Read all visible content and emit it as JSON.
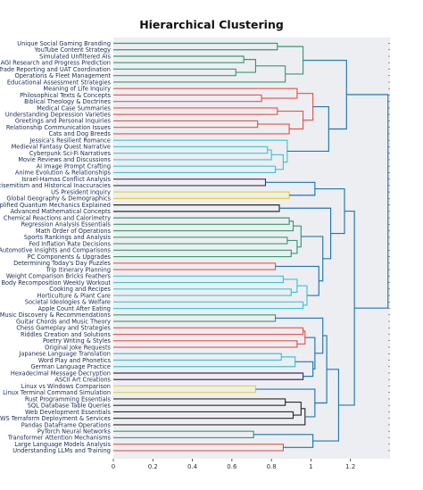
{
  "chart_data": {
    "type": "dendrogram",
    "title": "Hierarchical Clustering",
    "xlim": [
      0,
      1.4
    ],
    "xticks": [
      0,
      0.2,
      0.4,
      0.6,
      0.8,
      1,
      1.2
    ],
    "xtick_labels": [
      "0",
      "0.2",
      "0.4",
      "0.6",
      "0.8",
      "1",
      "1.2"
    ],
    "leaves": [
      "Unique Social Gaming Branding",
      "YouTube Content Strategy",
      "Simulated Unfiltered AIs",
      "AGI Research and Progress Prediction",
      "Trade Reporting and UAT Coordination",
      "Operations & Fleet Management",
      "Educational Assessment Strategies",
      "Meaning of Life Inquiry",
      "Philosophical Texts & Concepts",
      "Biblical Theology & Doctrines",
      "Medical Case Summaries",
      "Understanding Depression Varieties",
      "Greetings and Personal Inquiries",
      "Relationship Communication Issues",
      "Cats and Dog Breeds",
      "Jessica's Resilient Romance",
      "Medieval Fantasy Quest Narrative",
      "Cyberpunk Sci-Fi Narratives",
      "Movie Reviews and Discussions",
      "AI Image Prompt Crafting",
      "Anime Evolution & Relationships",
      "Israel-Hamas Conflict Analysis",
      "Antisemitism and Historical Inaccuracies",
      "US President Inquiry",
      "Global Geography & Demographics",
      "Simplified Quantum Mechanics Explained",
      "Advanced Mathematical Concepts",
      "Chemical Reactions and Calorimetry",
      "Regression Analysis Essentials",
      "Math Order of Operations",
      "Sports Rankings and Analysis",
      "Fed Inflation Rate Decisions",
      "Automotive Insights and Comparisons",
      "PC Components & Upgrades",
      "Determining Today's Day Puzzles",
      "Trip Itinerary Planning",
      "Weight Comparison Bricks Feathers",
      "Body Recomposition Weekly Workout",
      "Cooking and Recipes",
      "Horticulture & Plant Care",
      "Societal Ideologies & Welfare",
      "Apple Count After Eating",
      "Music Discovery & Recommendations",
      "Guitar Chords and Music Theory",
      "Chess Gameplay and Strategies",
      "Riddles Creation and Solutions",
      "Poetry Writing & Styles",
      "Original Joke Requests",
      "Japanese Language Translation",
      "Word Play and Phonetics",
      "German Language Practice",
      "Hexadecimal Message Decryption",
      "ASCII Art Creations",
      "Linux vs Windows Comparison",
      "Linux Terminal Command Simulation",
      "Rust Programming Essentials",
      "SQL Database Table Queries",
      "Web Development Essentials",
      "AWS Terraform Deployment & Services",
      "Pandas DataFrame Operations",
      "PyTorch Neural Networks",
      "Transformer Attention Mechanisms",
      "Large Language Models Analysis",
      "Understanding LLMs and Training"
    ],
    "merges": [
      {
        "a": 0,
        "b": 1,
        "height": 0.83,
        "color": "#3a9a6e"
      },
      {
        "a": 2,
        "b": 3,
        "height": 0.66,
        "color": "#3a9a6e"
      },
      {
        "a": 4,
        "b": 5,
        "height": 0.62,
        "color": "#3a9a6e"
      },
      {
        "a": "n2",
        "b": "n3",
        "height": 0.72,
        "color": "#3a9a6e"
      },
      {
        "a": "n4",
        "b": 6,
        "height": 0.87,
        "color": "#3a9a6e"
      },
      {
        "a": "n1",
        "b": "n5",
        "height": 0.96,
        "color": "#3a9a6e"
      },
      {
        "a": 8,
        "b": 9,
        "height": 0.75,
        "color": "#e8534b"
      },
      {
        "a": 7,
        "b": "n7",
        "height": 0.93,
        "color": "#e8534b"
      },
      {
        "a": 10,
        "b": 11,
        "height": 0.83,
        "color": "#e8534b"
      },
      {
        "a": 12,
        "b": 13,
        "height": 0.73,
        "color": "#e8534b"
      },
      {
        "a": "n10",
        "b": 14,
        "height": 0.89,
        "color": "#e8534b"
      },
      {
        "a": "n9",
        "b": "n11",
        "height": 0.96,
        "color": "#e8534b"
      },
      {
        "a": "n8",
        "b": "n12",
        "height": 1.01,
        "color": "#e8534b"
      },
      {
        "a": 16,
        "b": 17,
        "height": 0.78,
        "color": "#40c4d0"
      },
      {
        "a": "n14",
        "b": 18,
        "height": 0.8,
        "color": "#40c4d0"
      },
      {
        "a": 19,
        "b": 20,
        "height": 0.82,
        "color": "#40c4d0"
      },
      {
        "a": "n15",
        "b": "n16",
        "height": 0.86,
        "color": "#40c4d0"
      },
      {
        "a": 15,
        "b": "n17",
        "height": 0.88,
        "color": "#40c4d0"
      },
      {
        "a": "n13",
        "b": "n18",
        "height": 1.09,
        "color": "#1f77b4"
      },
      {
        "a": "n6",
        "b": "n19",
        "height": 1.18,
        "color": "#1f77b4"
      },
      {
        "a": 21,
        "b": 22,
        "height": 0.77,
        "color": "#4a2a5a"
      },
      {
        "a": 23,
        "b": 24,
        "height": 0.89,
        "color": "#e8d040"
      },
      {
        "a": "n21",
        "b": "n22",
        "height": 1.02,
        "color": "#1f77b4"
      },
      {
        "a": 25,
        "b": 26,
        "height": 0.84,
        "color": "#2a2a2a"
      },
      {
        "a": 27,
        "b": 28,
        "height": 0.89,
        "color": "#3a9a6e"
      },
      {
        "a": "n25",
        "b": 29,
        "height": 0.91,
        "color": "#3a9a6e"
      },
      {
        "a": 30,
        "b": 31,
        "height": 0.88,
        "color": "#3a9a6e"
      },
      {
        "a": 32,
        "b": 33,
        "height": 0.9,
        "color": "#3a9a6e"
      },
      {
        "a": "n27",
        "b": "n28",
        "height": 0.93,
        "color": "#3a9a6e"
      },
      {
        "a": "n26",
        "b": "n29",
        "height": 0.95,
        "color": "#3a9a6e"
      },
      {
        "a": 34,
        "b": 35,
        "height": 0.82,
        "color": "#e8534b"
      },
      {
        "a": 36,
        "b": 37,
        "height": 0.86,
        "color": "#40c4d0"
      },
      {
        "a": 38,
        "b": 39,
        "height": 0.9,
        "color": "#40c4d0"
      },
      {
        "a": "n32",
        "b": "n33",
        "height": 0.93,
        "color": "#40c4d0"
      },
      {
        "a": 40,
        "b": 41,
        "height": 0.96,
        "color": "#40c4d0"
      },
      {
        "a": "n34",
        "b": "n35",
        "height": 0.98,
        "color": "#40c4d0"
      },
      {
        "a": "n31",
        "b": "n36",
        "height": 1.04,
        "color": "#1f77b4"
      },
      {
        "a": "n30",
        "b": "n37",
        "height": 1.06,
        "color": "#1f77b4"
      },
      {
        "a": "n24",
        "b": "n38",
        "height": 1.1,
        "color": "#1f77b4"
      },
      {
        "a": "n23",
        "b": "n39",
        "height": 1.17,
        "color": "#1f77b4"
      },
      {
        "a": 42,
        "b": 43,
        "height": 0.82,
        "color": "#3a9a6e"
      },
      {
        "a": 44,
        "b": 45,
        "height": 0.96,
        "color": "#e8534b"
      },
      {
        "a": 46,
        "b": 47,
        "height": 0.93,
        "color": "#e8534b"
      },
      {
        "a": "n42",
        "b": "n43",
        "height": 0.97,
        "color": "#e8534b"
      },
      {
        "a": 48,
        "b": 49,
        "height": 0.85,
        "color": "#40c4d0"
      },
      {
        "a": "n45",
        "b": 50,
        "height": 0.92,
        "color": "#40c4d0"
      },
      {
        "a": 51,
        "b": 52,
        "height": 0.96,
        "color": "#4a2a5a"
      },
      {
        "a": "n46",
        "b": "n47",
        "height": 1.01,
        "color": "#1f77b4"
      },
      {
        "a": "n44",
        "b": "n48",
        "height": 1.02,
        "color": "#1f77b4"
      },
      {
        "a": "n41",
        "b": "n49",
        "height": 1.06,
        "color": "#1f77b4"
      },
      {
        "a": 53,
        "b": 54,
        "height": 0.72,
        "color": "#e8d040"
      },
      {
        "a": 55,
        "b": 56,
        "height": 0.87,
        "color": "#2a2a2a"
      },
      {
        "a": 57,
        "b": 58,
        "height": 0.91,
        "color": "#2a2a2a"
      },
      {
        "a": "n52",
        "b": "n53",
        "height": 0.95,
        "color": "#2a2a2a"
      },
      {
        "a": "n54",
        "b": 59,
        "height": 0.97,
        "color": "#2a2a2a"
      },
      {
        "a": "n51",
        "b": "n55",
        "height": 1.02,
        "color": "#1f77b4"
      },
      {
        "a": "n50",
        "b": "n56",
        "height": 1.08,
        "color": "#1f77b4"
      },
      {
        "a": 60,
        "b": 61,
        "height": 0.71,
        "color": "#3a9a6e"
      },
      {
        "a": 62,
        "b": 63,
        "height": 0.86,
        "color": "#e8534b"
      },
      {
        "a": "n58",
        "b": "n59",
        "height": 1.01,
        "color": "#1f77b4"
      },
      {
        "a": "n57",
        "b": "n60",
        "height": 1.14,
        "color": "#1f77b4"
      },
      {
        "a": "n40",
        "b": "n61",
        "height": 1.22,
        "color": "#1f77b4"
      },
      {
        "a": "n20",
        "b": "n62",
        "height": 1.39,
        "color": "#1f77b4"
      }
    ]
  }
}
